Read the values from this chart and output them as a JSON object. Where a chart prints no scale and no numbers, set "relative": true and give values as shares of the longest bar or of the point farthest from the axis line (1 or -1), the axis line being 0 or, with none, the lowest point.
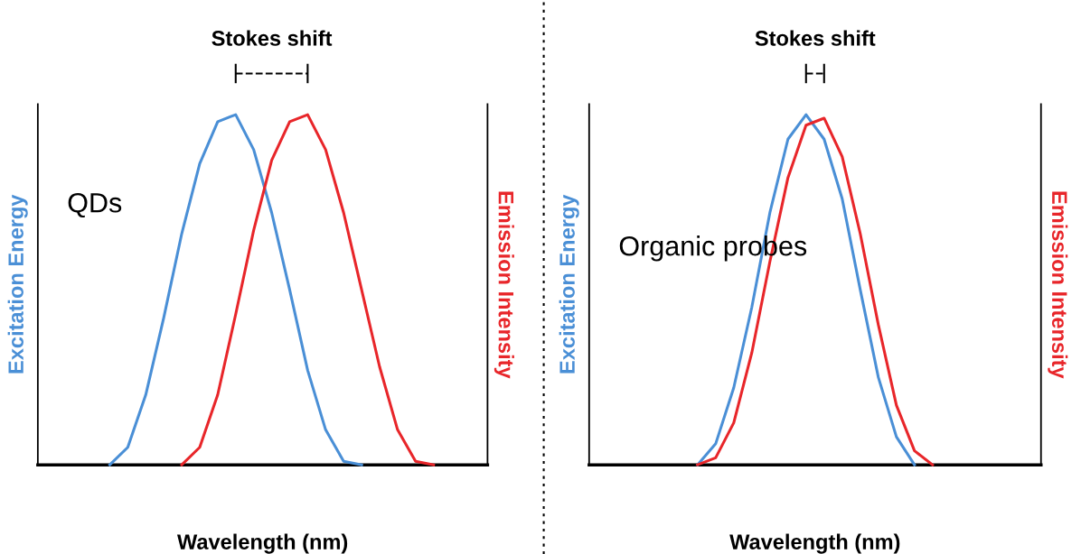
{
  "chart_data": [
    {
      "type": "line",
      "relative": true,
      "xlabel": "Wavelength (nm)",
      "ylabel": "Excitation Energy",
      "y2label": "Emission Intensity",
      "annotations": [
        "Stokes shift",
        "QDs"
      ],
      "categories": [
        null,
        null,
        null,
        null,
        null,
        null,
        null,
        null,
        null,
        null,
        null,
        null,
        null,
        null,
        null,
        null,
        null,
        null,
        null,
        null,
        null,
        null,
        null,
        null,
        null,
        null
      ],
      "series": [
        {
          "color": "#4a8fd6",
          "values": [
            null,
            null,
            null,
            null,
            0,
            0.05,
            0.2,
            0.42,
            0.66,
            0.86,
            0.98,
            1.0,
            0.9,
            0.72,
            0.5,
            0.27,
            0.1,
            0.01,
            0,
            null,
            null,
            null,
            null,
            null,
            null,
            null
          ]
        },
        {
          "color": "#e8262a",
          "values": [
            null,
            null,
            null,
            null,
            null,
            null,
            null,
            null,
            0,
            0.05,
            0.2,
            0.43,
            0.67,
            0.87,
            0.98,
            1.0,
            0.9,
            0.72,
            0.5,
            0.28,
            0.1,
            0.01,
            0,
            null,
            null,
            null
          ]
        }
      ]
    },
    {
      "type": "line",
      "relative": true,
      "xlabel": "Wavelength (nm)",
      "ylabel": "Excitation Energy",
      "y2label": "Emission Intensity",
      "annotations": [
        "Stokes shift",
        "Organic probes"
      ],
      "categories": [
        null,
        null,
        null,
        null,
        null,
        null,
        null,
        null,
        null,
        null,
        null,
        null,
        null,
        null,
        null,
        null,
        null,
        null,
        null,
        null,
        null,
        null,
        null,
        null,
        null,
        null
      ],
      "series": [
        {
          "color": "#4a8fd6",
          "values": [
            null,
            null,
            null,
            null,
            null,
            null,
            0,
            0.06,
            0.22,
            0.45,
            0.72,
            0.93,
            1.0,
            0.93,
            0.76,
            0.5,
            0.25,
            0.08,
            0,
            null,
            null,
            null,
            null,
            null,
            null,
            null
          ]
        },
        {
          "color": "#e8262a",
          "values": [
            null,
            null,
            null,
            null,
            null,
            null,
            0,
            0.02,
            0.12,
            0.32,
            0.58,
            0.82,
            0.97,
            0.99,
            0.88,
            0.66,
            0.4,
            0.17,
            0.04,
            0,
            null,
            null,
            null,
            null,
            null,
            null
          ]
        }
      ]
    }
  ]
}
